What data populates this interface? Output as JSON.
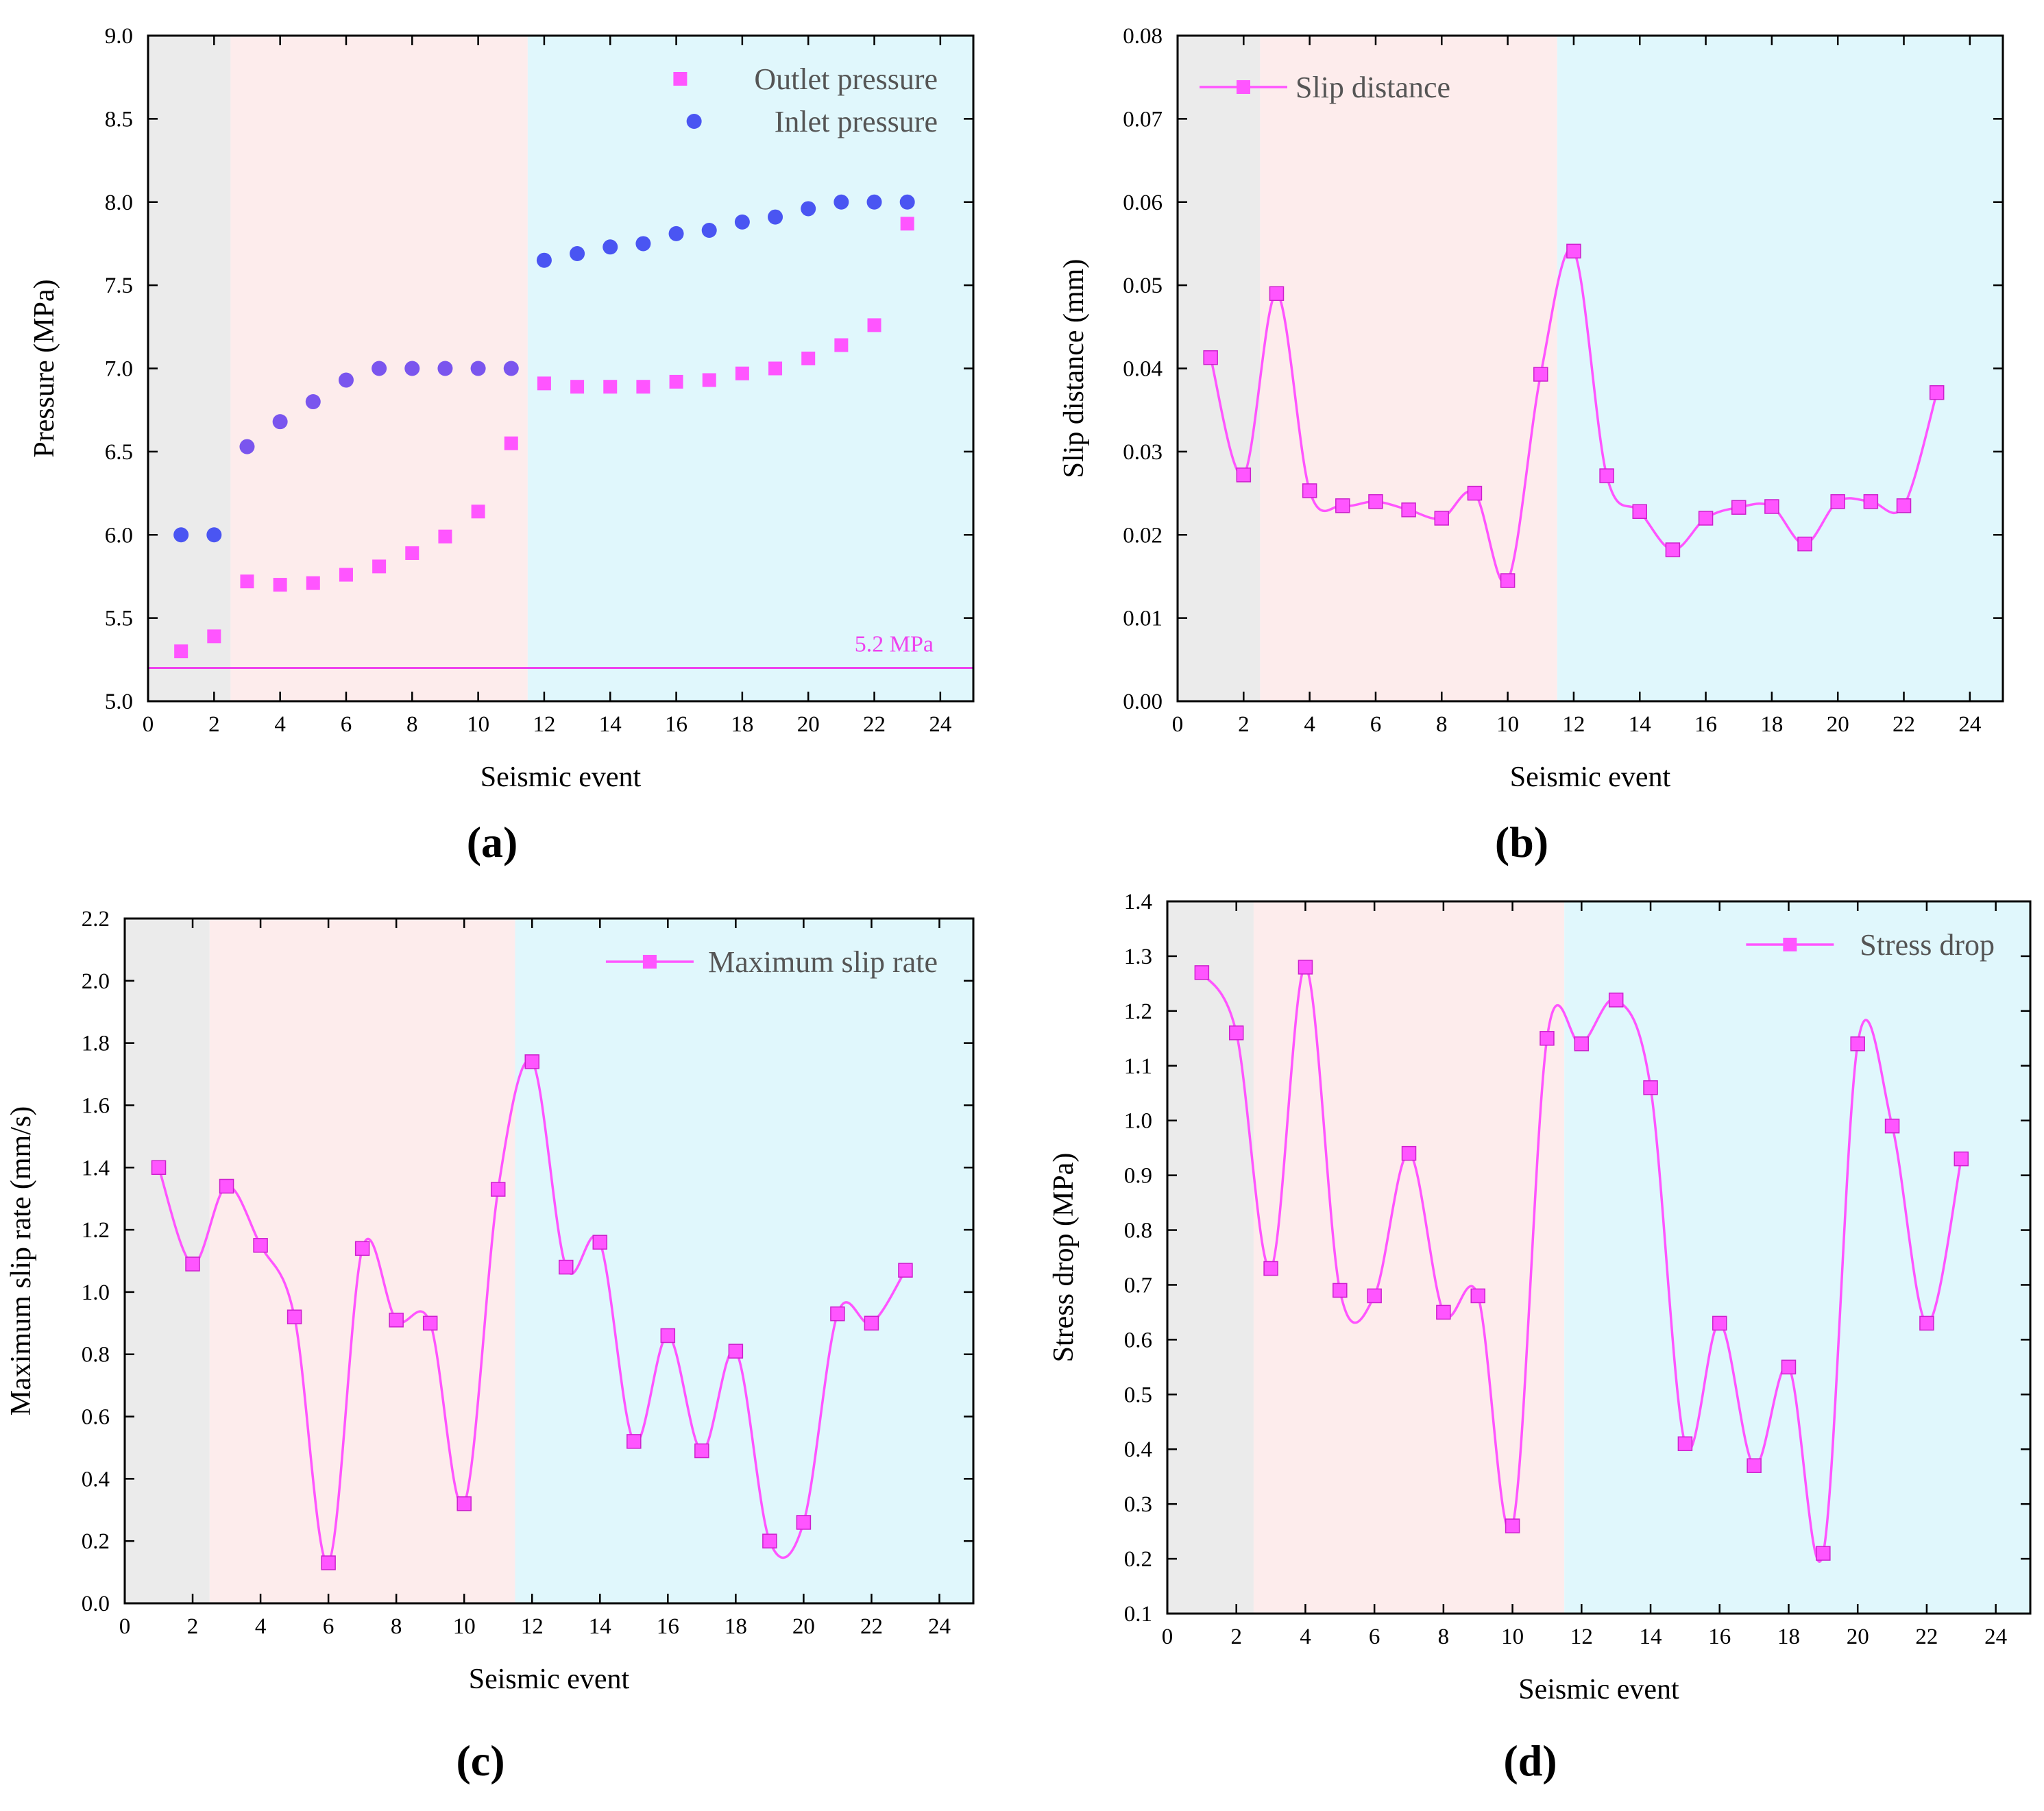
{
  "colors": {
    "pink": "#ff55ff",
    "blue": "#4a55f2",
    "purple": "#7a55ee",
    "grey_region": "#ebebeb",
    "pink_region": "#fdecec",
    "cyan_region": "#e0f7fc",
    "refline": "#ee44ee"
  },
  "chart_data": [
    {
      "type": "scatter",
      "panel_label": "(a)",
      "xlabel": "Seismic event",
      "ylabel": "Pressure (MPa)",
      "xlim": [
        0,
        25
      ],
      "ylim": [
        5.0,
        9.0
      ],
      "xticks": [
        "0",
        "2",
        "4",
        "6",
        "8",
        "10",
        "12",
        "14",
        "16",
        "18",
        "20",
        "22",
        "24"
      ],
      "yticks": [
        "5.0",
        "5.5",
        "6.0",
        "6.5",
        "7.0",
        "7.5",
        "8.0",
        "8.5",
        "9.0"
      ],
      "regions": [
        [
          0,
          2.5,
          "grey_region"
        ],
        [
          2.5,
          11.5,
          "pink_region"
        ],
        [
          11.5,
          25,
          "cyan_region"
        ]
      ],
      "reference_line": {
        "y": 5.2,
        "label": "5.2 MPa"
      },
      "legend_position": "top-right",
      "x": [
        1,
        2,
        3,
        4,
        5,
        6,
        7,
        8,
        9,
        10,
        11,
        12,
        13,
        14,
        15,
        16,
        17,
        18,
        19,
        20,
        21,
        22,
        23
      ],
      "series": [
        {
          "name": "Outlet pressure",
          "marker": "square",
          "color": "pink",
          "values": [
            5.3,
            5.39,
            5.72,
            5.7,
            5.71,
            5.76,
            5.81,
            5.89,
            5.99,
            6.14,
            6.55,
            6.91,
            6.89,
            6.89,
            6.89,
            6.92,
            6.93,
            6.97,
            7.0,
            7.06,
            7.14,
            7.26,
            7.87
          ]
        },
        {
          "name": "Inlet pressure",
          "marker": "circle",
          "color": "blue",
          "values": [
            6.0,
            6.0,
            6.53,
            6.68,
            6.8,
            6.93,
            7.0,
            7.0,
            7.0,
            7.0,
            7.0,
            7.65,
            7.69,
            7.73,
            7.75,
            7.81,
            7.83,
            7.88,
            7.91,
            7.96,
            8.0,
            8.0,
            8.0
          ]
        }
      ]
    },
    {
      "type": "line",
      "panel_label": "(b)",
      "xlabel": "Seismic event",
      "ylabel": "Slip distance (mm)",
      "xlim": [
        0,
        25
      ],
      "ylim": [
        0.0,
        0.08
      ],
      "xticks": [
        "0",
        "2",
        "4",
        "6",
        "8",
        "10",
        "12",
        "14",
        "16",
        "18",
        "20",
        "22",
        "24"
      ],
      "yticks": [
        "0.00",
        "0.01",
        "0.02",
        "0.03",
        "0.04",
        "0.05",
        "0.06",
        "0.07",
        "0.08"
      ],
      "regions": [
        [
          0,
          2.5,
          "grey_region"
        ],
        [
          2.5,
          11.5,
          "pink_region"
        ],
        [
          11.5,
          25,
          "cyan_region"
        ]
      ],
      "legend_position": "top-left",
      "x": [
        1,
        2,
        3,
        4,
        5,
        6,
        7,
        8,
        9,
        10,
        11,
        12,
        13,
        14,
        15,
        16,
        17,
        18,
        19,
        20,
        21,
        22,
        23
      ],
      "series": [
        {
          "name": "Slip distance",
          "marker": "square",
          "color": "pink",
          "values": [
            0.0413,
            0.0272,
            0.049,
            0.0253,
            0.0235,
            0.024,
            0.023,
            0.022,
            0.025,
            0.0145,
            0.0393,
            0.0541,
            0.0271,
            0.0228,
            0.0182,
            0.022,
            0.0233,
            0.0234,
            0.0189,
            0.024,
            0.024,
            0.0235,
            0.0371
          ]
        }
      ]
    },
    {
      "type": "line",
      "panel_label": "(c)",
      "xlabel": "Seismic event",
      "ylabel": "Maximum slip rate (mm/s)",
      "xlim": [
        0,
        25
      ],
      "ylim": [
        0.0,
        2.2
      ],
      "xticks": [
        "0",
        "2",
        "4",
        "6",
        "8",
        "10",
        "12",
        "14",
        "16",
        "18",
        "20",
        "22",
        "24"
      ],
      "yticks": [
        "0.0",
        "0.2",
        "0.4",
        "0.6",
        "0.8",
        "1.0",
        "1.2",
        "1.4",
        "1.6",
        "1.8",
        "2.0",
        "2.2"
      ],
      "regions": [
        [
          0,
          2.5,
          "grey_region"
        ],
        [
          2.5,
          11.5,
          "pink_region"
        ],
        [
          11.5,
          25,
          "cyan_region"
        ]
      ],
      "legend_position": "top-right",
      "x": [
        1,
        2,
        3,
        4,
        5,
        6,
        7,
        8,
        9,
        10,
        11,
        12,
        13,
        14,
        15,
        16,
        17,
        18,
        19,
        20,
        21,
        22,
        23
      ],
      "series": [
        {
          "name": "Maximum slip rate",
          "marker": "square",
          "color": "pink",
          "values": [
            1.4,
            1.09,
            1.34,
            1.15,
            0.92,
            0.13,
            1.14,
            0.91,
            0.9,
            0.32,
            1.33,
            1.74,
            1.08,
            1.16,
            0.52,
            0.86,
            0.49,
            0.81,
            0.2,
            0.26,
            0.93,
            0.9,
            1.07
          ]
        }
      ]
    },
    {
      "type": "line",
      "panel_label": "(d)",
      "xlabel": "Seismic event",
      "ylabel": "Stress drop (MPa)",
      "xlim": [
        0,
        25
      ],
      "ylim": [
        0.1,
        1.4
      ],
      "xticks": [
        "0",
        "2",
        "4",
        "6",
        "8",
        "10",
        "12",
        "14",
        "16",
        "18",
        "20",
        "22",
        "24"
      ],
      "yticks": [
        "0.1",
        "0.2",
        "0.3",
        "0.4",
        "0.5",
        "0.6",
        "0.7",
        "0.8",
        "0.9",
        "1.0",
        "1.1",
        "1.2",
        "1.3",
        "1.4"
      ],
      "regions": [
        [
          0,
          2.5,
          "grey_region"
        ],
        [
          2.5,
          11.5,
          "pink_region"
        ],
        [
          11.5,
          25,
          "cyan_region"
        ]
      ],
      "legend_position": "top-right",
      "x": [
        1,
        2,
        3,
        4,
        5,
        6,
        7,
        8,
        9,
        10,
        11,
        12,
        13,
        14,
        15,
        16,
        17,
        18,
        19,
        20,
        21,
        22,
        23
      ],
      "series": [
        {
          "name": "Stress drop",
          "marker": "square",
          "color": "pink",
          "values": [
            1.27,
            1.16,
            0.73,
            1.28,
            0.69,
            0.68,
            0.94,
            0.65,
            0.68,
            0.26,
            1.15,
            1.14,
            1.22,
            1.06,
            0.41,
            0.63,
            0.37,
            0.55,
            0.21,
            1.14,
            0.99,
            0.63,
            0.93
          ]
        }
      ]
    }
  ]
}
